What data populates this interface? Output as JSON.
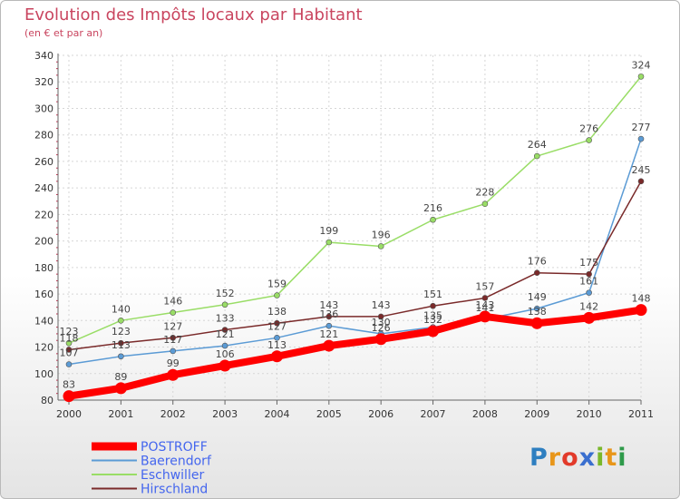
{
  "chart_data": {
    "type": "line",
    "title": "Evolution des Impôts locaux par Habitant",
    "subtitle": "(en € et par an)",
    "xlabel": "",
    "ylabel": "",
    "ylim": [
      80,
      340
    ],
    "yticks": [
      80,
      100,
      120,
      140,
      160,
      180,
      200,
      220,
      240,
      260,
      280,
      300,
      320,
      340
    ],
    "categories": [
      "2000",
      "2001",
      "2002",
      "2003",
      "2004",
      "2005",
      "2006",
      "2007",
      "2008",
      "2009",
      "2010",
      "2011"
    ],
    "series": [
      {
        "name": "POSTROFF",
        "color": "#ff0000",
        "values": [
          83,
          89,
          99,
          106,
          113,
          121,
          126,
          132,
          143,
          138,
          142,
          148
        ]
      },
      {
        "name": "Baerendorf",
        "color": "#5b9bd5",
        "values": [
          107,
          113,
          117,
          121,
          127,
          136,
          130,
          135,
          141,
          149,
          161,
          277
        ]
      },
      {
        "name": "Eschwiller",
        "color": "#99dd66",
        "values": [
          123,
          140,
          146,
          152,
          159,
          199,
          196,
          216,
          228,
          264,
          276,
          324
        ]
      },
      {
        "name": "Hirschland",
        "color": "#7a2a2a",
        "values": [
          118,
          123,
          127,
          133,
          138,
          143,
          143,
          151,
          157,
          176,
          175,
          245
        ]
      }
    ],
    "legend_position": "bottom-left"
  },
  "brand": {
    "letters": [
      "P",
      "r",
      "o",
      "x",
      "i",
      "t",
      "i"
    ],
    "colors": [
      "#2e7fc0",
      "#e8961a",
      "#e23a2a",
      "#3a6fcf",
      "#7ab82a",
      "#e8961a",
      "#2e9a4a"
    ]
  }
}
